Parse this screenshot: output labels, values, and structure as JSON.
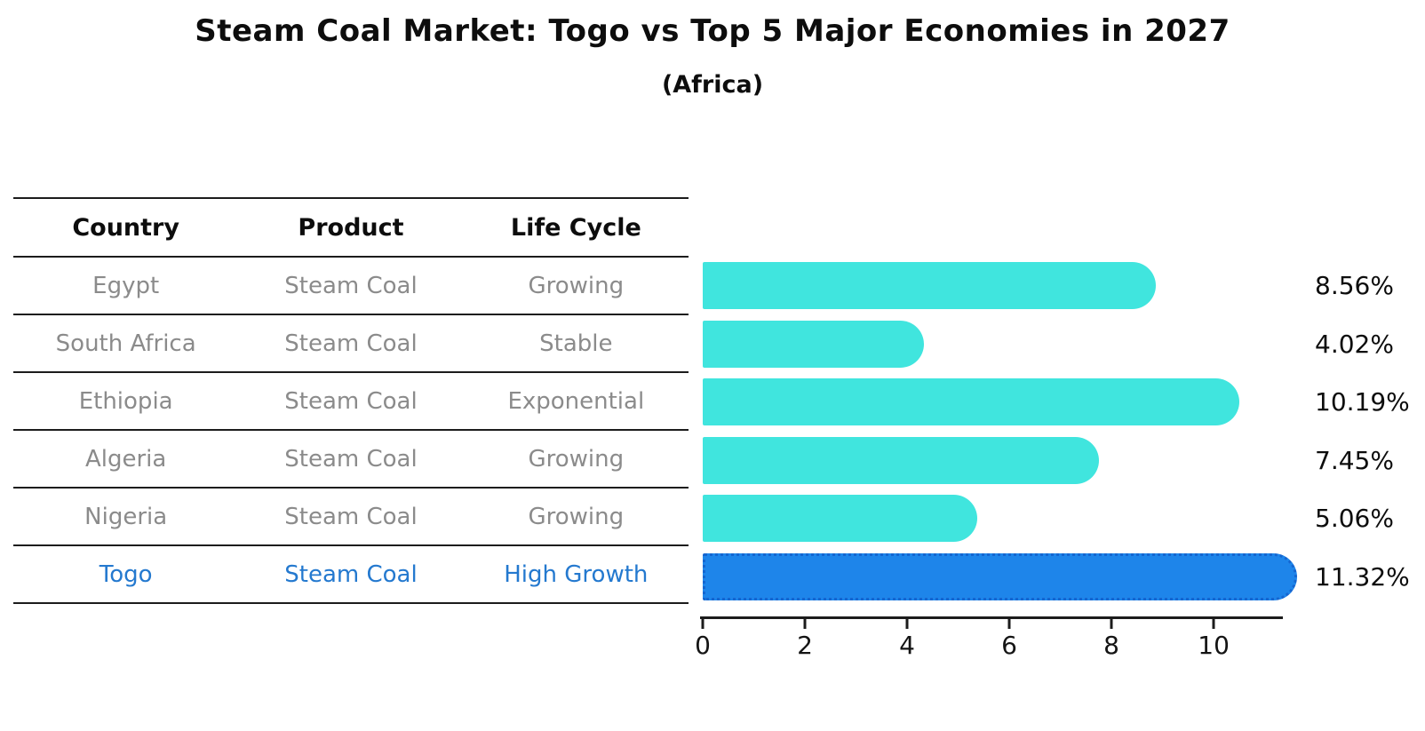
{
  "title": "Steam Coal Market: Togo vs Top 5 Major Economies in 2027",
  "subtitle": "(Africa)",
  "table": {
    "columns": [
      "Country",
      "Product",
      "Life Cycle"
    ],
    "rows": [
      {
        "country": "Egypt",
        "product": "Steam Coal",
        "life_cycle": "Growing",
        "highlighted": false
      },
      {
        "country": "South Africa",
        "product": "Steam Coal",
        "life_cycle": "Stable",
        "highlighted": false
      },
      {
        "country": "Ethiopia",
        "product": "Steam Coal",
        "life_cycle": "Exponential",
        "highlighted": false
      },
      {
        "country": "Algeria",
        "product": "Steam Coal",
        "life_cycle": "Growing",
        "highlighted": false
      },
      {
        "country": "Nigeria",
        "product": "Steam Coal",
        "life_cycle": "Growing",
        "highlighted": false
      },
      {
        "country": "Togo",
        "product": "Steam Coal",
        "life_cycle": "High Growth",
        "highlighted": true
      }
    ]
  },
  "chart_data": {
    "type": "bar",
    "orientation": "horizontal",
    "title": "Steam Coal Market: Togo vs Top 5 Major Economies in 2027",
    "subtitle": "(Africa)",
    "categories": [
      "Egypt",
      "South Africa",
      "Ethiopia",
      "Algeria",
      "Nigeria",
      "Togo"
    ],
    "values": [
      8.56,
      4.02,
      10.19,
      7.45,
      5.06,
      11.32
    ],
    "value_labels": [
      "8.56%",
      "4.02%",
      "10.19%",
      "7.45%",
      "5.06%",
      "11.32%"
    ],
    "xlabel": "",
    "ylabel": "",
    "xlim": [
      0,
      11.32
    ],
    "x_ticks": [
      0,
      2,
      4,
      6,
      8,
      10
    ],
    "grid": false,
    "legend": false,
    "highlight_index": 5
  },
  "colors": {
    "bar": "#40E5DE",
    "highlight_bar": "#1E85EA",
    "highlight_bar_edge": "#1566D0",
    "highlight_text": "#2479CF",
    "table_text": "#8B8B8B",
    "heading_text": "#0D0D0D",
    "axis": "#1C1C1C"
  }
}
